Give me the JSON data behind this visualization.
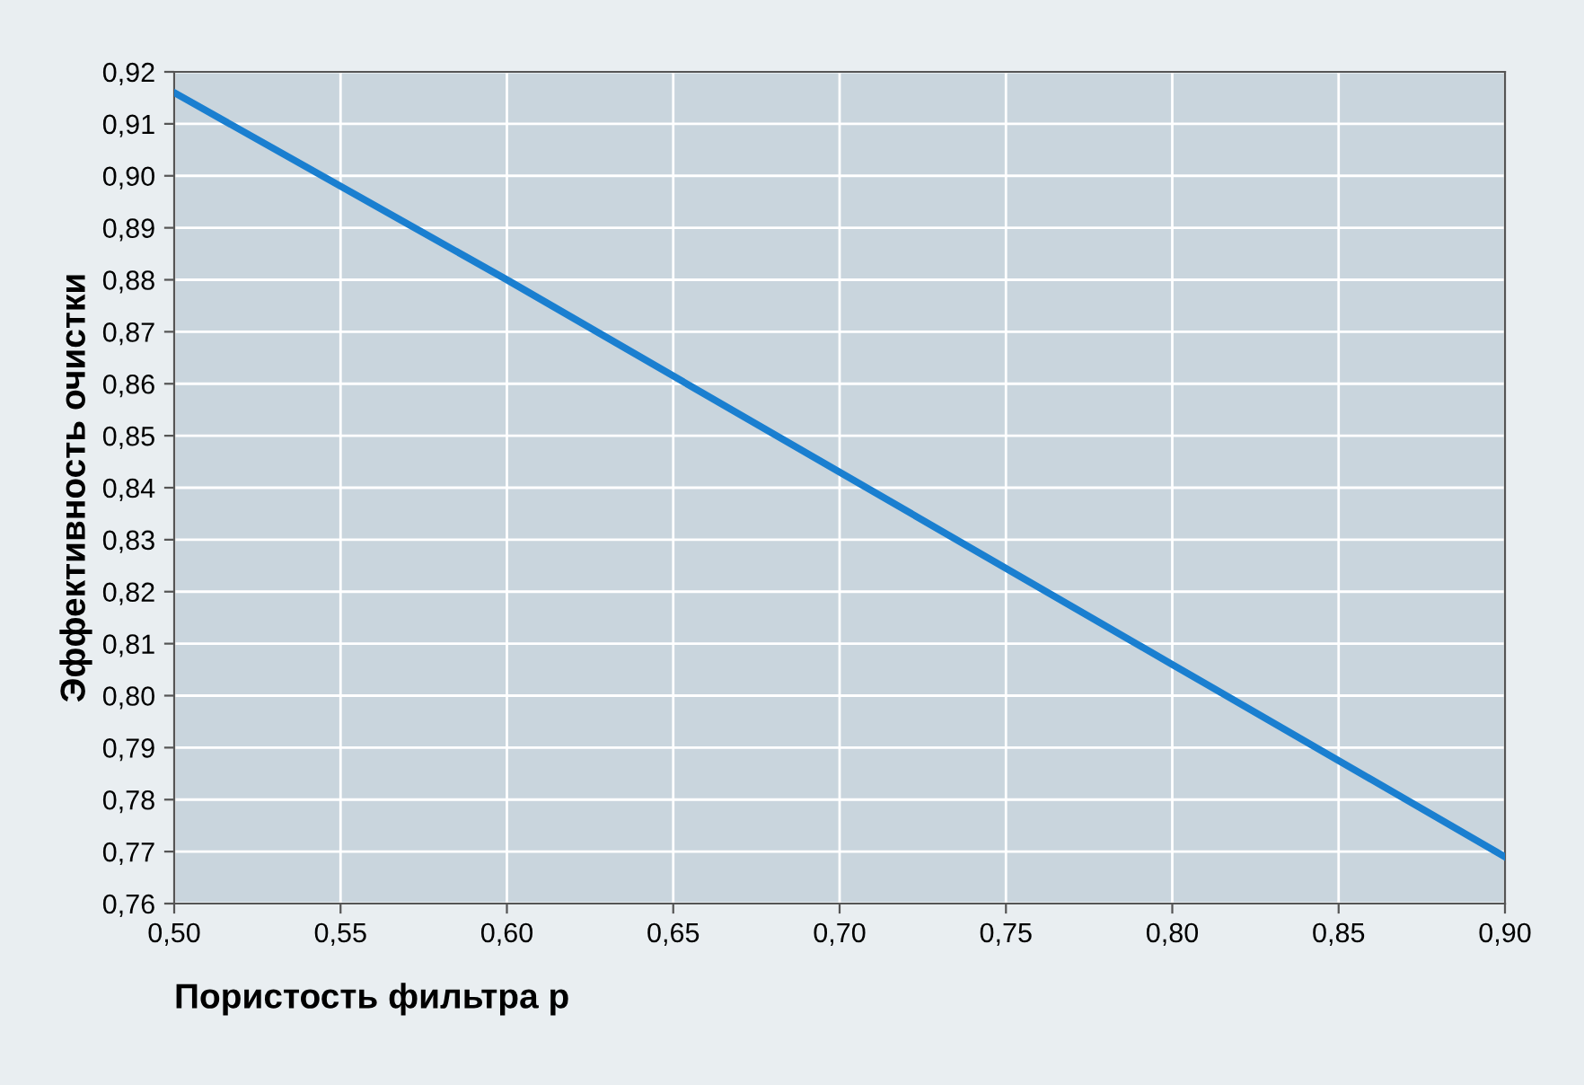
{
  "chart_data": {
    "type": "line",
    "xlabel": "Пористость фильтра p",
    "ylabel": "Эффективность очистки",
    "x": [
      0.5,
      0.6,
      0.7,
      0.8,
      0.9
    ],
    "series": [
      {
        "color": "#1a7fd0",
        "values": [
          0.916,
          0.88,
          0.843,
          0.806,
          0.769
        ]
      }
    ],
    "xlim": [
      0.5,
      0.9
    ],
    "ylim": [
      0.76,
      0.92
    ],
    "xticks": [
      {
        "value": 0.5,
        "label": "0,50"
      },
      {
        "value": 0.55,
        "label": "0,55"
      },
      {
        "value": 0.6,
        "label": "0,60"
      },
      {
        "value": 0.65,
        "label": "0,65"
      },
      {
        "value": 0.7,
        "label": "0,70"
      },
      {
        "value": 0.75,
        "label": "0,75"
      },
      {
        "value": 0.8,
        "label": "0,80"
      },
      {
        "value": 0.85,
        "label": "0,85"
      },
      {
        "value": 0.9,
        "label": "0,90"
      }
    ],
    "yticks": [
      {
        "value": 0.76,
        "label": "0,76"
      },
      {
        "value": 0.77,
        "label": "0,77"
      },
      {
        "value": 0.78,
        "label": "0,78"
      },
      {
        "value": 0.79,
        "label": "0,79"
      },
      {
        "value": 0.8,
        "label": "0,80"
      },
      {
        "value": 0.81,
        "label": "0,81"
      },
      {
        "value": 0.82,
        "label": "0,82"
      },
      {
        "value": 0.83,
        "label": "0,83"
      },
      {
        "value": 0.84,
        "label": "0,84"
      },
      {
        "value": 0.85,
        "label": "0,85"
      },
      {
        "value": 0.86,
        "label": "0,86"
      },
      {
        "value": 0.87,
        "label": "0,87"
      },
      {
        "value": 0.88,
        "label": "0,88"
      },
      {
        "value": 0.89,
        "label": "0,89"
      },
      {
        "value": 0.9,
        "label": "0,90"
      },
      {
        "value": 0.91,
        "label": "0,91"
      },
      {
        "value": 0.92,
        "label": "0,92"
      }
    ],
    "grid": true,
    "marker": "none",
    "line_style": "solid"
  }
}
